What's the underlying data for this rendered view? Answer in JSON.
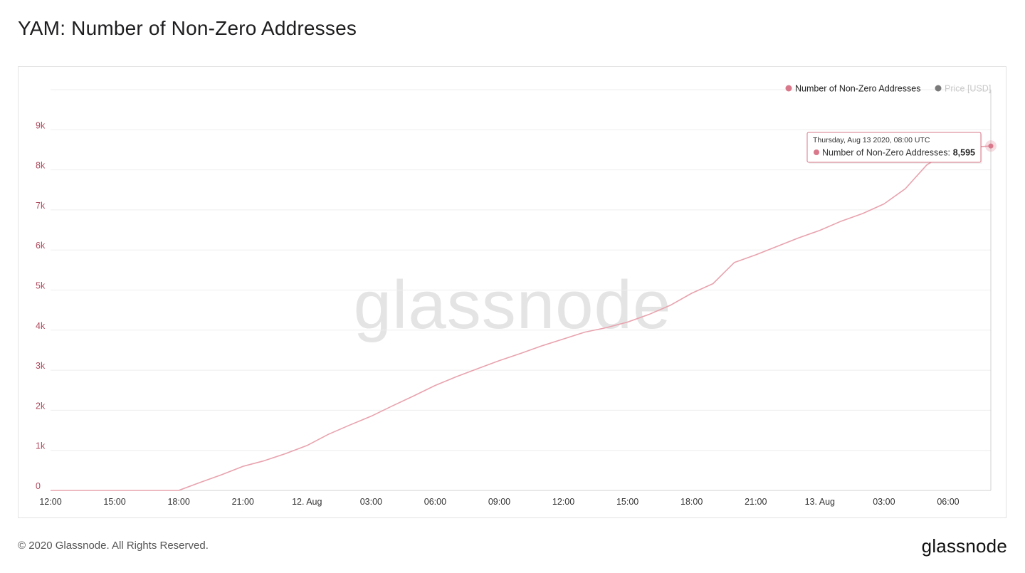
{
  "page": {
    "title": "YAM: Number of Non-Zero Addresses",
    "copyright": "© 2020 Glassnode. All Rights Reserved.",
    "logo_text": "glassnode",
    "watermark": "glassnode"
  },
  "colors": {
    "series": "#e8a3ae",
    "series_dot": "#d9788a",
    "price_dot": "#7a7a7a",
    "axis_text": "#b04a5e",
    "grid": "#eeeeee"
  },
  "chart_data": {
    "type": "line",
    "title": "YAM: Number of Non-Zero Addresses",
    "xlabel": "",
    "ylabel": "",
    "ylim": [
      0,
      10000
    ],
    "y_ticks": [
      0,
      1000,
      2000,
      3000,
      4000,
      5000,
      6000,
      7000,
      8000,
      9000
    ],
    "y_tick_labels": [
      "0",
      "1k",
      "2k",
      "3k",
      "4k",
      "5k",
      "6k",
      "7k",
      "8k",
      "9k"
    ],
    "x_range": [
      "2020-08-11 12:00",
      "2020-08-13 08:00"
    ],
    "x_ticks": [
      {
        "t": "2020-08-11 12:00",
        "label": "12:00"
      },
      {
        "t": "2020-08-11 15:00",
        "label": "15:00"
      },
      {
        "t": "2020-08-11 18:00",
        "label": "18:00"
      },
      {
        "t": "2020-08-11 21:00",
        "label": "21:00"
      },
      {
        "t": "2020-08-12 00:00",
        "label": "12. Aug"
      },
      {
        "t": "2020-08-12 03:00",
        "label": "03:00"
      },
      {
        "t": "2020-08-12 06:00",
        "label": "06:00"
      },
      {
        "t": "2020-08-12 09:00",
        "label": "09:00"
      },
      {
        "t": "2020-08-12 12:00",
        "label": "12:00"
      },
      {
        "t": "2020-08-12 15:00",
        "label": "15:00"
      },
      {
        "t": "2020-08-12 18:00",
        "label": "18:00"
      },
      {
        "t": "2020-08-12 21:00",
        "label": "21:00"
      },
      {
        "t": "2020-08-13 00:00",
        "label": "13. Aug"
      },
      {
        "t": "2020-08-13 03:00",
        "label": "03:00"
      },
      {
        "t": "2020-08-13 06:00",
        "label": "06:00"
      }
    ],
    "grid": true,
    "legend_position": "top-right",
    "legend": [
      {
        "label": "Number of Non-Zero Addresses",
        "color": "#d9788a",
        "active": true
      },
      {
        "label": "Price [USD]",
        "color": "#7a7a7a",
        "active": false
      }
    ],
    "series": [
      {
        "name": "Number of Non-Zero Addresses",
        "color": "#e8a3ae",
        "points": [
          [
            "2020-08-11 12:00",
            0
          ],
          [
            "2020-08-11 13:00",
            0
          ],
          [
            "2020-08-11 14:00",
            0
          ],
          [
            "2020-08-11 15:00",
            0
          ],
          [
            "2020-08-11 16:00",
            0
          ],
          [
            "2020-08-11 17:00",
            0
          ],
          [
            "2020-08-11 18:00",
            0
          ],
          [
            "2020-08-11 19:00",
            200
          ],
          [
            "2020-08-11 20:00",
            390
          ],
          [
            "2020-08-11 21:00",
            600
          ],
          [
            "2020-08-11 22:00",
            740
          ],
          [
            "2020-08-11 23:00",
            920
          ],
          [
            "2020-08-12 00:00",
            1120
          ],
          [
            "2020-08-12 01:00",
            1400
          ],
          [
            "2020-08-12 02:00",
            1630
          ],
          [
            "2020-08-12 03:00",
            1850
          ],
          [
            "2020-08-12 04:00",
            2110
          ],
          [
            "2020-08-12 05:00",
            2360
          ],
          [
            "2020-08-12 06:00",
            2620
          ],
          [
            "2020-08-12 07:00",
            2840
          ],
          [
            "2020-08-12 08:00",
            3040
          ],
          [
            "2020-08-12 09:00",
            3240
          ],
          [
            "2020-08-12 10:00",
            3420
          ],
          [
            "2020-08-12 11:00",
            3610
          ],
          [
            "2020-08-12 12:00",
            3780
          ],
          [
            "2020-08-12 13:00",
            3950
          ],
          [
            "2020-08-12 14:00",
            4060
          ],
          [
            "2020-08-12 15:00",
            4200
          ],
          [
            "2020-08-12 16:00",
            4390
          ],
          [
            "2020-08-12 17:00",
            4620
          ],
          [
            "2020-08-12 18:00",
            4920
          ],
          [
            "2020-08-12 19:00",
            5160
          ],
          [
            "2020-08-12 20:00",
            5690
          ],
          [
            "2020-08-12 21:00",
            5880
          ],
          [
            "2020-08-12 22:00",
            6090
          ],
          [
            "2020-08-12 23:00",
            6300
          ],
          [
            "2020-08-13 00:00",
            6490
          ],
          [
            "2020-08-13 01:00",
            6720
          ],
          [
            "2020-08-13 02:00",
            6910
          ],
          [
            "2020-08-13 03:00",
            7150
          ],
          [
            "2020-08-13 04:00",
            7530
          ],
          [
            "2020-08-13 05:00",
            8120
          ],
          [
            "2020-08-13 06:00",
            8460
          ],
          [
            "2020-08-13 07:00",
            8560
          ],
          [
            "2020-08-13 08:00",
            8595
          ]
        ]
      }
    ],
    "tooltip": {
      "date": "Thursday, Aug 13 2020, 08:00 UTC",
      "series_label": "Number of Non-Zero Addresses:",
      "value": "8,595",
      "point": [
        "2020-08-13 08:00",
        8595
      ]
    }
  }
}
